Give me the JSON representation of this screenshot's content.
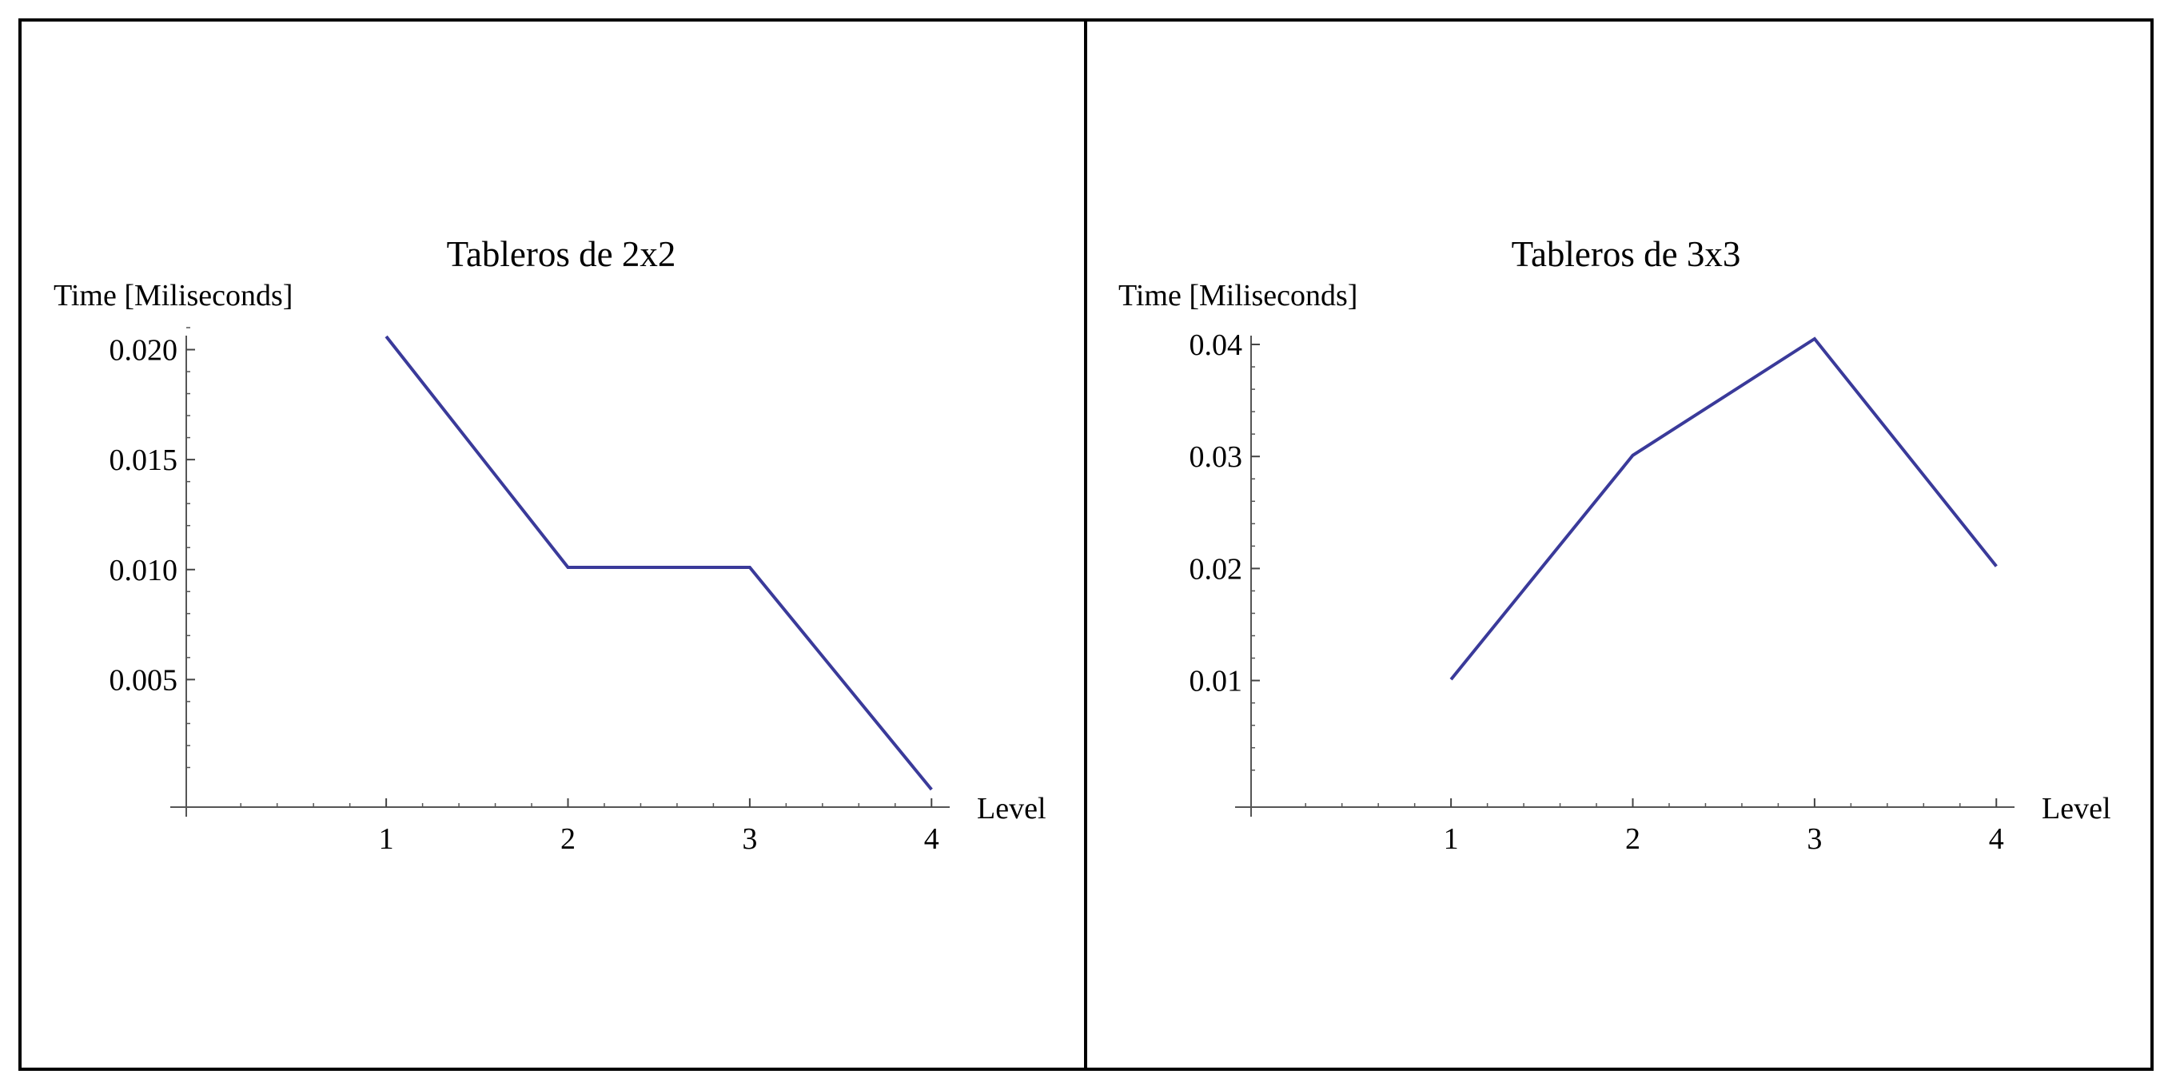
{
  "line_color": "#3a3a9a",
  "chart_data": [
    {
      "type": "line",
      "title": "Tableros de 2x2",
      "xlabel": "Level",
      "ylabel": "Time [Miliseconds]",
      "x": [
        1,
        2,
        3,
        4
      ],
      "series": [
        {
          "values": [
            0.0206,
            0.0101,
            0.0101,
            0.0
          ]
        }
      ],
      "xlim": [
        -0.1,
        4.1
      ],
      "ylim": [
        -0.0008,
        0.021
      ],
      "xticks": [
        1,
        2,
        3,
        4
      ],
      "xtick_labels": [
        "1",
        "2",
        "3",
        "4"
      ],
      "yticks": [
        0.005,
        0.01,
        0.015,
        0.02
      ],
      "ytick_labels": [
        "0.005",
        "0.010",
        "0.015",
        "0.020"
      ],
      "grid": false,
      "legend": "none"
    },
    {
      "type": "line",
      "title": "Tableros de 3x3",
      "xlabel": "Level",
      "ylabel": "Time [Miliseconds]",
      "x": [
        1,
        2,
        3,
        4
      ],
      "series": [
        {
          "values": [
            0.0101,
            0.0301,
            0.0405,
            0.0202
          ]
        }
      ],
      "xlim": [
        -0.1,
        4.1
      ],
      "ylim": [
        -0.0013,
        0.0415
      ],
      "xticks": [
        1,
        2,
        3,
        4
      ],
      "xtick_labels": [
        "1",
        "2",
        "3",
        "4"
      ],
      "yticks": [
        0.01,
        0.02,
        0.03,
        0.04
      ],
      "ytick_labels": [
        "0.01",
        "0.02",
        "0.03",
        "0.04"
      ],
      "grid": false,
      "legend": "none"
    }
  ]
}
